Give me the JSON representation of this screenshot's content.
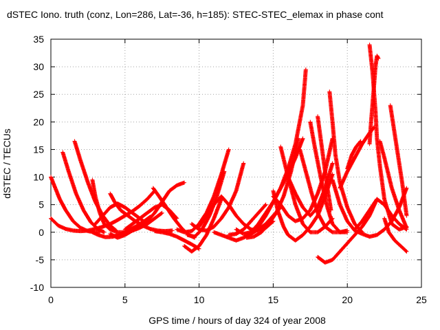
{
  "chart_data": {
    "type": "scatter",
    "title": "dSTEC Iono. truth (conz, Lon=286, Lat=-36, h=185): STEC-STEC_elemax in phase cont",
    "xlabel": "GPS time / hours of day 324 of year 2008",
    "ylabel": "dSTEC  / TECUs",
    "xlim": [
      0,
      25
    ],
    "ylim": [
      -10,
      35
    ],
    "xticks": [
      0,
      5,
      10,
      15,
      20,
      25
    ],
    "yticks": [
      -10,
      -5,
      0,
      5,
      10,
      15,
      20,
      25,
      30,
      35
    ],
    "grid": true,
    "marker": "+",
    "color": "#ff0000",
    "series": [
      {
        "x": [
          0.0,
          0.3,
          0.6,
          1.0,
          1.5,
          2.0,
          2.5,
          3.0,
          3.3
        ],
        "y": [
          10.0,
          8.0,
          6.0,
          4.0,
          2.0,
          0.8,
          0.2,
          0.0,
          0.0
        ]
      },
      {
        "x": [
          0.0,
          0.5,
          1.0,
          1.5,
          2.0,
          2.5,
          3.0,
          3.5,
          4.0,
          4.5,
          5.0,
          5.5,
          6.0,
          6.5,
          7.0
        ],
        "y": [
          2.5,
          1.2,
          0.6,
          0.3,
          0.2,
          0.3,
          0.6,
          1.0,
          1.5,
          2.2,
          3.0,
          3.8,
          4.8,
          6.0,
          7.5
        ]
      },
      {
        "x": [
          0.8,
          1.2,
          1.7,
          2.2,
          2.7,
          3.2,
          3.6
        ],
        "y": [
          14.5,
          11.0,
          7.0,
          4.0,
          1.8,
          0.5,
          0.0
        ]
      },
      {
        "x": [
          1.6,
          2.0,
          2.5,
          3.0,
          3.5,
          4.0,
          4.4
        ],
        "y": [
          16.5,
          13.0,
          9.0,
          5.5,
          3.0,
          1.2,
          0.3
        ]
      },
      {
        "x": [
          2.8,
          3.0,
          3.3,
          3.6,
          4.0,
          4.5,
          5.0,
          5.5,
          6.0,
          6.5,
          7.0,
          7.5
        ],
        "y": [
          9.5,
          6.5,
          3.5,
          1.5,
          0.5,
          0.0,
          0.0,
          0.3,
          0.8,
          1.5,
          2.5,
          3.5
        ]
      },
      {
        "x": [
          2.8,
          3.2,
          3.7,
          4.2,
          4.7,
          5.2,
          5.7,
          6.2,
          6.7
        ],
        "y": [
          0.0,
          -0.5,
          -0.9,
          -0.8,
          -0.3,
          0.3,
          1.0,
          1.8,
          2.8
        ]
      },
      {
        "x": [
          3.0,
          3.5,
          4.0,
          4.5,
          5.0,
          5.5,
          6.0,
          6.5
        ],
        "y": [
          1.5,
          3.0,
          4.5,
          5.2,
          4.5,
          3.5,
          2.5,
          1.5
        ]
      },
      {
        "x": [
          4.0,
          4.3,
          4.7,
          5.2,
          5.7,
          6.2,
          6.7,
          7.2,
          7.7,
          8.2
        ],
        "y": [
          7.0,
          5.5,
          4.0,
          3.0,
          2.0,
          1.2,
          0.6,
          0.3,
          0.2,
          0.3
        ]
      },
      {
        "x": [
          4.0,
          4.5,
          5.0,
          5.5,
          6.0,
          6.5,
          7.0,
          7.5,
          8.0,
          8.5,
          9.0
        ],
        "y": [
          -0.3,
          -1.0,
          -0.5,
          0.3,
          1.0,
          2.0,
          3.5,
          5.5,
          7.5,
          8.5,
          9.0
        ]
      },
      {
        "x": [
          5.0,
          5.5,
          6.0,
          6.5,
          7.0,
          7.5,
          8.0,
          8.5
        ],
        "y": [
          0.5,
          1.5,
          2.5,
          3.5,
          4.5,
          5.0,
          4.0,
          2.5
        ]
      },
      {
        "x": [
          6.9,
          7.3,
          7.8,
          8.3,
          8.8,
          9.3,
          9.7
        ],
        "y": [
          8.0,
          6.5,
          4.5,
          2.5,
          0.8,
          -0.5,
          -1.0
        ]
      },
      {
        "x": [
          7.0,
          7.5,
          8.0,
          8.5,
          9.0,
          9.5,
          10.0
        ],
        "y": [
          0.2,
          0.0,
          -0.3,
          -0.8,
          -1.5,
          -2.2,
          -3.0
        ]
      },
      {
        "x": [
          8.5,
          9.0,
          9.5,
          10.0,
          10.5,
          11.0,
          11.5,
          12.0
        ],
        "y": [
          0.5,
          0.0,
          0.2,
          1.5,
          3.5,
          6.5,
          10.5,
          15.0
        ]
      },
      {
        "x": [
          9.0,
          9.5,
          10.0,
          10.5,
          11.0,
          11.5
        ],
        "y": [
          -2.5,
          -3.5,
          -2.5,
          -0.5,
          2.5,
          6.0
        ]
      },
      {
        "x": [
          9.2,
          9.7,
          10.2,
          10.7,
          11.2,
          11.7
        ],
        "y": [
          -0.5,
          -0.8,
          0.5,
          3.0,
          6.5,
          11.0
        ]
      },
      {
        "x": [
          9.5,
          10.0,
          10.5,
          11.0,
          11.5,
          12.0,
          12.5,
          13.0
        ],
        "y": [
          1.5,
          0.5,
          0.3,
          1.0,
          2.5,
          4.5,
          7.5,
          12.5
        ]
      },
      {
        "x": [
          10.0,
          10.5,
          11.0,
          11.5,
          12.0,
          12.5,
          13.0,
          13.5,
          14.0,
          14.5,
          15.0
        ],
        "y": [
          1.0,
          3.0,
          5.0,
          6.5,
          5.0,
          3.0,
          1.5,
          0.5,
          0.3,
          0.8,
          2.0
        ]
      },
      {
        "x": [
          11.0,
          11.5,
          12.0,
          12.5,
          13.0,
          13.5,
          14.0,
          14.5,
          15.0,
          15.5
        ],
        "y": [
          0.0,
          -0.5,
          -1.0,
          -1.5,
          -1.0,
          -0.3,
          0.5,
          1.5,
          3.0,
          4.5
        ]
      },
      {
        "x": [
          12.0,
          12.5,
          13.0,
          13.5,
          14.0,
          14.5
        ],
        "y": [
          -0.5,
          -0.3,
          0.5,
          2.0,
          3.5,
          5.0
        ]
      },
      {
        "x": [
          12.5,
          13.0,
          13.5,
          14.0,
          14.5,
          15.0,
          15.5,
          16.0,
          16.5,
          17.0
        ],
        "y": [
          0.5,
          -0.3,
          0.0,
          1.0,
          3.0,
          5.5,
          8.0,
          10.5,
          13.5,
          17.0
        ]
      },
      {
        "x": [
          13.2,
          13.7,
          14.2,
          14.7,
          15.2,
          15.7,
          16.2,
          16.7
        ],
        "y": [
          -1.0,
          -0.8,
          0.0,
          1.5,
          3.5,
          6.5,
          11.0,
          17.0
        ]
      },
      {
        "x": [
          13.5,
          14.0,
          14.5,
          15.0,
          15.5,
          16.0,
          16.5,
          17.0,
          17.2
        ],
        "y": [
          0.0,
          1.5,
          3.5,
          5.5,
          8.0,
          11.5,
          16.0,
          23.0,
          29.5
        ]
      },
      {
        "x": [
          15.0,
          15.3,
          15.7,
          16.0,
          16.5,
          17.0,
          17.5,
          18.0,
          18.5,
          19.0
        ],
        "y": [
          7.5,
          4.0,
          1.0,
          -0.5,
          -1.5,
          -0.5,
          1.0,
          3.0,
          6.5,
          10.5
        ]
      },
      {
        "x": [
          15.0,
          15.5,
          16.0,
          16.5,
          17.0,
          17.5,
          18.0,
          18.5,
          19.0
        ],
        "y": [
          6.5,
          5.0,
          3.0,
          2.0,
          2.5,
          4.0,
          7.0,
          11.0,
          17.0
        ]
      },
      {
        "x": [
          15.5,
          16.0,
          16.5,
          17.0,
          17.5,
          18.0,
          18.5,
          19.0
        ],
        "y": [
          15.5,
          10.0,
          5.0,
          1.5,
          0.0,
          0.0,
          1.0,
          2.5
        ]
      },
      {
        "x": [
          16.0,
          16.5,
          17.0,
          17.5,
          18.0,
          18.5,
          19.0
        ],
        "y": [
          10.0,
          7.0,
          4.5,
          3.0,
          4.5,
          8.0,
          12.5
        ]
      },
      {
        "x": [
          16.8,
          17.2,
          17.6,
          18.0,
          18.5,
          19.0,
          19.5,
          20.0
        ],
        "y": [
          15.0,
          11.0,
          7.0,
          3.5,
          1.0,
          0.0,
          0.0,
          0.3
        ]
      },
      {
        "x": [
          17.5,
          17.8,
          18.2,
          18.6,
          19.0,
          19.5,
          20.0
        ],
        "y": [
          20.0,
          15.5,
          10.0,
          5.0,
          1.5,
          0.0,
          0.0
        ]
      },
      {
        "x": [
          18.0,
          18.3,
          18.6,
          18.9
        ],
        "y": [
          21.0,
          15.0,
          9.0,
          4.0
        ]
      },
      {
        "x": [
          18.0,
          18.5,
          19.0,
          19.5,
          20.0,
          20.5,
          21.0,
          21.5,
          22.0
        ],
        "y": [
          -4.5,
          -5.5,
          -5.0,
          -3.5,
          -2.0,
          -0.5,
          1.0,
          3.0,
          6.0
        ]
      },
      {
        "x": [
          18.8,
          19.0,
          19.2,
          19.5,
          20.0,
          20.5,
          21.0
        ],
        "y": [
          25.5,
          20.0,
          14.0,
          9.0,
          4.5,
          1.5,
          0.0
        ]
      },
      {
        "x": [
          19.0,
          19.5,
          20.0,
          20.5,
          21.0,
          21.5,
          22.0,
          22.5,
          23.0,
          23.5,
          24.0
        ],
        "y": [
          9.5,
          5.0,
          2.0,
          0.3,
          -0.3,
          -0.8,
          -0.5,
          0.5,
          2.0,
          4.5,
          8.0
        ]
      },
      {
        "x": [
          19.5,
          20.0,
          20.5,
          21.0,
          21.5,
          21.8
        ],
        "y": [
          8.0,
          11.0,
          13.5,
          16.0,
          18.0,
          19.0
        ]
      },
      {
        "x": [
          20.0,
          20.3,
          20.6,
          20.9
        ],
        "y": [
          11.5,
          14.0,
          15.5,
          16.5
        ]
      },
      {
        "x": [
          20.5,
          21.0,
          21.5,
          22.0,
          22.5,
          23.0,
          23.5,
          24.0
        ],
        "y": [
          0.5,
          2.0,
          4.0,
          6.0,
          5.0,
          3.0,
          1.5,
          0.5
        ]
      },
      {
        "x": [
          21.5,
          21.7,
          21.9,
          22.0,
          22.2,
          22.5,
          23.0,
          23.5,
          24.0
        ],
        "y": [
          34.0,
          29.0,
          22.0,
          17.0,
          12.0,
          6.0,
          1.5,
          0.5,
          1.0
        ]
      },
      {
        "x": [
          21.5,
          21.6,
          21.8,
          21.9,
          22.0,
          22.1
        ],
        "y": [
          16.0,
          20.0,
          26.5,
          30.0,
          32.0,
          31.5
        ]
      },
      {
        "x": [
          22.2,
          22.5,
          23.0,
          23.5,
          24.0
        ],
        "y": [
          16.5,
          13.5,
          8.0,
          4.0,
          0.8
        ]
      },
      {
        "x": [
          22.5,
          22.8,
          23.2,
          23.6,
          24.0
        ],
        "y": [
          2.5,
          0.0,
          -1.5,
          -2.5,
          -3.5
        ]
      },
      {
        "x": [
          22.9,
          23.3,
          23.7,
          24.0
        ],
        "y": [
          23.0,
          16.0,
          9.0,
          3.0
        ]
      }
    ]
  }
}
